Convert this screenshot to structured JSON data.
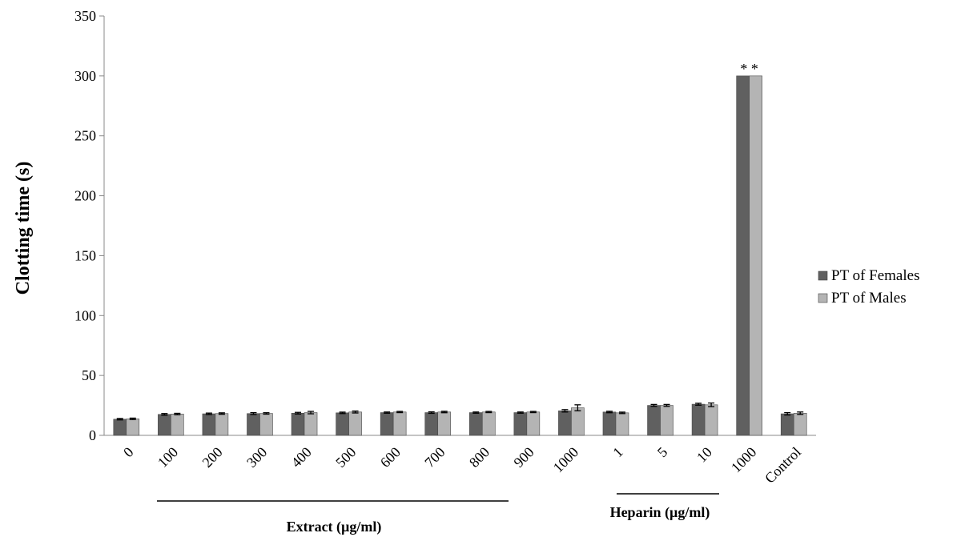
{
  "chart_data": {
    "type": "bar",
    "title": "",
    "ylabel": "Clotting time (s)",
    "xlabel": "",
    "ylim": [
      0,
      350
    ],
    "yticks": [
      0,
      50,
      100,
      150,
      200,
      250,
      300,
      350
    ],
    "grid": false,
    "legend_position": "right",
    "categories": [
      "0",
      "100",
      "200",
      "300",
      "400",
      "500",
      "600",
      "700",
      "800",
      "900",
      "1000",
      "1",
      "5",
      "10",
      "1000",
      "Control"
    ],
    "series": [
      {
        "name": "PT of Females",
        "color": "#606060",
        "values": [
          13.5,
          17.5,
          18,
          18.2,
          18.5,
          18.8,
          19,
          19,
          19,
          19,
          20.5,
          19.5,
          25,
          26,
          300,
          18
        ],
        "errors": [
          0.6,
          0.7,
          0.6,
          0.8,
          0.7,
          0.6,
          0.5,
          0.6,
          0.5,
          0.5,
          1.0,
          0.6,
          0.8,
          0.8,
          0,
          1.0
        ]
      },
      {
        "name": "PT of Males",
        "color": "#b4b4b4",
        "values": [
          13.8,
          17.8,
          18.2,
          18.3,
          19,
          19.5,
          19.5,
          19.5,
          19.5,
          19.5,
          23,
          18.8,
          25,
          25.5,
          300,
          18.5
        ],
        "errors": [
          0.6,
          0.6,
          0.6,
          0.6,
          1.0,
          0.8,
          0.5,
          0.6,
          0.5,
          0.5,
          2.5,
          0.6,
          0.8,
          1.5,
          0,
          1.0
        ]
      }
    ],
    "annotations": [
      {
        "category_index": 14,
        "text": "* *"
      }
    ],
    "groups": [
      {
        "label": "Extract (µg/ml)"
      },
      {
        "label": "Heparin (µg/ml)"
      }
    ]
  }
}
